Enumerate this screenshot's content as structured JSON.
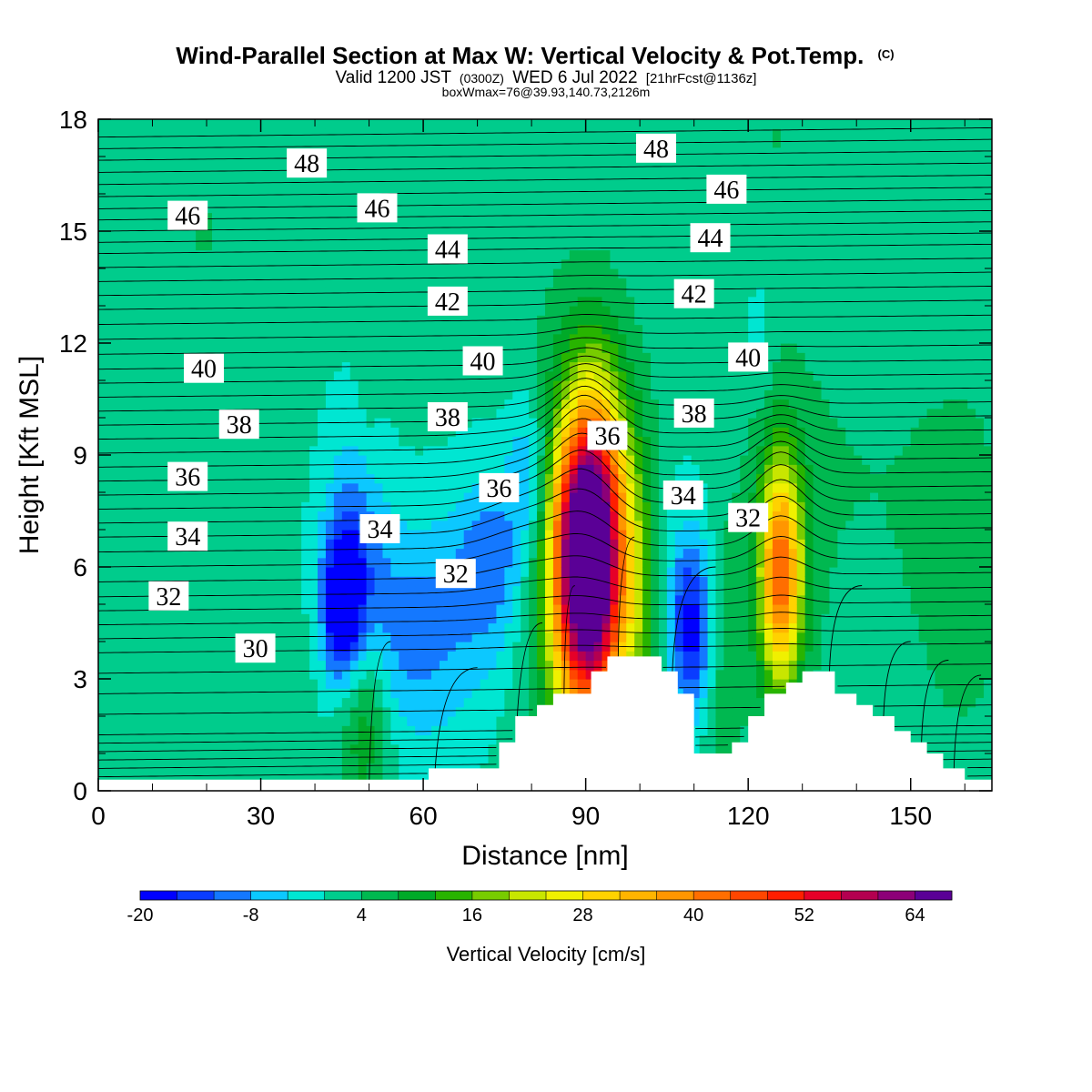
{
  "header": {
    "title": "Wind-Parallel Section at Max W: Vertical Velocity & Pot.Temp.",
    "copyright": "(C)",
    "valid_prefix": "Valid 1200 JST",
    "valid_utc": "(0300Z)",
    "valid_date": "WED 6 Jul 2022",
    "forecast_info": "[21hrFcst@1136z]",
    "box_info": "boxWmax=76@39.93,140.73,2126m"
  },
  "chart_data": {
    "type": "heatmap",
    "title": "Wind-Parallel Section at Max W: Vertical Velocity & Pot.Temp.",
    "xlabel": "Distance [nm]",
    "ylabel": "Height [Kft MSL]",
    "xlim": [
      0,
      165
    ],
    "ylim": [
      0,
      18
    ],
    "x_ticks": [
      0,
      30,
      60,
      90,
      120,
      150
    ],
    "x_tick_labels": [
      "0",
      "30",
      "60",
      "90",
      "120",
      "150"
    ],
    "y_ticks": [
      0,
      3,
      6,
      9,
      12,
      15,
      18
    ],
    "y_tick_labels": [
      "0",
      "3",
      "6",
      "9",
      "12",
      "15",
      "18"
    ],
    "colorbar": {
      "label": "Vertical Velocity [cm/s]",
      "min": -20,
      "max": 68,
      "step": 4,
      "tick_values": [
        -20,
        -8,
        4,
        16,
        28,
        40,
        52,
        64
      ],
      "tick_labels": [
        "-20",
        "-8",
        "4",
        "16",
        "28",
        "40",
        "52",
        "64"
      ],
      "colors": [
        "#0000ff",
        "#0a3cff",
        "#1478ff",
        "#0cc8ff",
        "#00e6d2",
        "#00cc8c",
        "#00b850",
        "#00aa28",
        "#28b400",
        "#78cc00",
        "#c8e600",
        "#f0f000",
        "#ffd200",
        "#ffb400",
        "#ff9600",
        "#ff6e00",
        "#ff4600",
        "#ff1e00",
        "#e60028",
        "#b40050",
        "#8c0078",
        "#5a0096"
      ]
    },
    "velocity_cells": [
      {
        "x": 45,
        "y": 5.0,
        "sx": 2.5,
        "sy": 1.4,
        "w": -20
      },
      {
        "x": 47,
        "y": 6.0,
        "sx": 4,
        "sy": 2.6,
        "w": -10
      },
      {
        "x": 58,
        "y": 4.2,
        "sx": 9,
        "sy": 2.2,
        "w": -11
      },
      {
        "x": 73,
        "y": 6.2,
        "sx": 5,
        "sy": 1.8,
        "w": -11
      },
      {
        "x": 80,
        "y": 8.5,
        "sx": 3,
        "sy": 1.6,
        "w": -12
      },
      {
        "x": 88,
        "y": 10.2,
        "sx": 3,
        "sy": 1.6,
        "w": -5
      },
      {
        "x": 110,
        "y": 4.3,
        "sx": 3,
        "sy": 1.6,
        "w": -16
      },
      {
        "x": 108,
        "y": 5.2,
        "sx": 6,
        "sy": 2.4,
        "w": -6
      },
      {
        "x": 122,
        "y": 12.0,
        "sx": 2,
        "sy": 1.2,
        "w": -4
      },
      {
        "x": 90.5,
        "y": 6.3,
        "sx": 4.2,
        "sy": 2.8,
        "w": 70
      },
      {
        "x": 90,
        "y": 6.5,
        "sx": 7,
        "sy": 3.8,
        "w": 22
      },
      {
        "x": 126,
        "y": 5.8,
        "sx": 2.6,
        "sy": 2.0,
        "w": 32
      },
      {
        "x": 126,
        "y": 6.0,
        "sx": 4,
        "sy": 3.0,
        "w": 10
      },
      {
        "x": 49,
        "y": 2.0,
        "sx": 3.5,
        "sy": 1.8,
        "w": 14
      },
      {
        "x": 100,
        "y": 5.0,
        "sx": 3,
        "sy": 2.5,
        "w": 10
      },
      {
        "x": 115,
        "y": 4.0,
        "sx": 3,
        "sy": 2.5,
        "w": 9
      },
      {
        "x": 50,
        "y": 11.5,
        "sx": 1.5,
        "sy": 1.5,
        "w": 3
      },
      {
        "x": 20,
        "y": 15.0,
        "sx": 6,
        "sy": 2.5,
        "w": 3
      },
      {
        "x": 5,
        "y": 8.0,
        "sx": 8,
        "sy": 3.5,
        "w": 3
      },
      {
        "x": 160,
        "y": 6.0,
        "sx": 9,
        "sy": 5.0,
        "w": 4
      },
      {
        "x": 135,
        "y": 8.5,
        "sx": 12,
        "sy": 3.5,
        "w": 3
      },
      {
        "x": 125,
        "y": 17.5,
        "sx": 2,
        "sy": 1.5,
        "w": 3
      },
      {
        "x": 35,
        "y": 3.5,
        "sx": 8,
        "sy": 1.5,
        "w": 2
      }
    ],
    "background_velocity": 1,
    "terrain": [
      [
        0,
        0.3
      ],
      [
        20,
        0.3
      ],
      [
        40,
        0.3
      ],
      [
        60,
        0.3
      ],
      [
        61,
        0.3
      ],
      [
        61,
        0.6
      ],
      [
        74,
        0.6
      ],
      [
        74,
        1.3
      ],
      [
        77,
        1.3
      ],
      [
        77,
        2.0
      ],
      [
        81,
        2.0
      ],
      [
        81,
        2.3
      ],
      [
        84,
        2.3
      ],
      [
        84,
        2.6
      ],
      [
        91,
        2.6
      ],
      [
        91,
        3.2
      ],
      [
        94,
        3.2
      ],
      [
        94,
        3.6
      ],
      [
        104,
        3.6
      ],
      [
        104,
        3.2
      ],
      [
        107,
        3.2
      ],
      [
        107,
        2.6
      ],
      [
        110,
        2.6
      ],
      [
        110,
        1.0
      ],
      [
        117,
        1.0
      ],
      [
        117,
        1.3
      ],
      [
        120,
        1.3
      ],
      [
        120,
        2.0
      ],
      [
        123,
        2.0
      ],
      [
        123,
        2.6
      ],
      [
        127,
        2.6
      ],
      [
        127,
        2.9
      ],
      [
        130,
        2.9
      ],
      [
        130,
        3.2
      ],
      [
        136,
        3.2
      ],
      [
        136,
        2.6
      ],
      [
        140,
        2.6
      ],
      [
        140,
        2.3
      ],
      [
        143,
        2.3
      ],
      [
        143,
        2.0
      ],
      [
        147,
        2.0
      ],
      [
        147,
        1.6
      ],
      [
        150,
        1.6
      ],
      [
        150,
        1.3
      ],
      [
        153,
        1.3
      ],
      [
        153,
        1.0
      ],
      [
        156,
        1.0
      ],
      [
        156,
        0.6
      ],
      [
        160,
        0.6
      ],
      [
        160,
        0.3
      ],
      [
        165,
        0.3
      ]
    ],
    "theta_contours": {
      "base_height_at_level": [
        [
          26,
          0.6
        ],
        [
          28,
          1.5
        ],
        [
          30,
          3.7
        ],
        [
          32,
          5.2
        ],
        [
          34,
          6.8
        ],
        [
          36,
          8.3
        ],
        [
          38,
          9.8
        ],
        [
          40,
          11.3
        ],
        [
          42,
          12.9
        ],
        [
          44,
          14.4
        ],
        [
          46,
          15.6
        ],
        [
          48,
          16.9
        ]
      ],
      "levels_step": 0.5,
      "level_min": 25,
      "level_max": 49
    },
    "contour_labels": [
      {
        "text": "48",
        "x": 38.5,
        "y": 16.8
      },
      {
        "text": "46",
        "x": 16.5,
        "y": 15.4
      },
      {
        "text": "46",
        "x": 51.5,
        "y": 15.6
      },
      {
        "text": "48",
        "x": 103,
        "y": 17.2
      },
      {
        "text": "46",
        "x": 116,
        "y": 16.1
      },
      {
        "text": "44",
        "x": 64.5,
        "y": 14.5
      },
      {
        "text": "44",
        "x": 113,
        "y": 14.8
      },
      {
        "text": "42",
        "x": 64.5,
        "y": 13.1
      },
      {
        "text": "42",
        "x": 110,
        "y": 13.3
      },
      {
        "text": "40",
        "x": 19.5,
        "y": 11.3
      },
      {
        "text": "40",
        "x": 71,
        "y": 11.5
      },
      {
        "text": "40",
        "x": 120,
        "y": 11.6
      },
      {
        "text": "38",
        "x": 26,
        "y": 9.8
      },
      {
        "text": "38",
        "x": 64.5,
        "y": 10.0
      },
      {
        "text": "38",
        "x": 110,
        "y": 10.1
      },
      {
        "text": "36",
        "x": 16.5,
        "y": 8.4
      },
      {
        "text": "36",
        "x": 74,
        "y": 8.1
      },
      {
        "text": "36",
        "x": 94,
        "y": 9.5
      },
      {
        "text": "34",
        "x": 16.5,
        "y": 6.8
      },
      {
        "text": "34",
        "x": 52,
        "y": 7.0
      },
      {
        "text": "34",
        "x": 108,
        "y": 7.9
      },
      {
        "text": "32",
        "x": 13,
        "y": 5.2
      },
      {
        "text": "32",
        "x": 66,
        "y": 5.8
      },
      {
        "text": "32",
        "x": 120,
        "y": 7.3
      },
      {
        "text": "30",
        "x": 29,
        "y": 3.8
      }
    ]
  }
}
